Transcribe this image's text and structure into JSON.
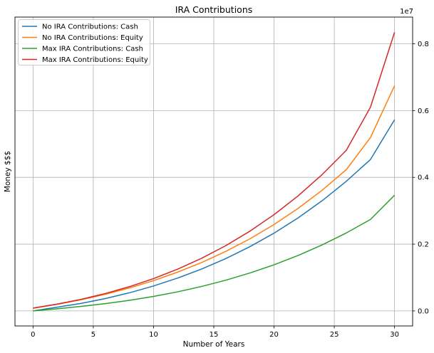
{
  "chart_data": {
    "type": "line",
    "title": "IRA Contributions",
    "xlabel": "Number of Years",
    "ylabel": "Money $$$",
    "offset_text": "1e7",
    "xlim": [
      -1.5,
      31.5
    ],
    "ylim": [
      -0.045,
      0.88
    ],
    "x_ticks": [
      0,
      5,
      10,
      15,
      20,
      25,
      30
    ],
    "y_ticks": [
      0.0,
      0.2,
      0.4,
      0.6,
      0.8
    ],
    "y_tick_labels": [
      "0.0",
      "0.2",
      "0.4",
      "0.6",
      "0.8"
    ],
    "y_axis_side": "right",
    "grid": true,
    "legend_position": "top-left",
    "x": [
      0,
      2,
      4,
      6,
      8,
      10,
      12,
      14,
      16,
      18,
      20,
      22,
      24,
      26,
      28,
      30
    ],
    "series": [
      {
        "name": "No IRA Contributions: Cash",
        "color": "#1f77b4",
        "values": [
          0.0,
          0.0113,
          0.0226,
          0.037,
          0.0543,
          0.0747,
          0.0984,
          0.1256,
          0.1569,
          0.1925,
          0.2329,
          0.2787,
          0.3303,
          0.3884,
          0.4534,
          0.5725
        ]
      },
      {
        "name": "No IRA Contributions: Equity",
        "color": "#ff7f0e",
        "values": [
          0.008,
          0.0197,
          0.0335,
          0.0498,
          0.0688,
          0.0908,
          0.1162,
          0.1452,
          0.1784,
          0.2161,
          0.2588,
          0.3072,
          0.3617,
          0.4231,
          0.5192,
          0.6745
        ]
      },
      {
        "name": "Max IRA Contributions: Cash",
        "color": "#2ca02c",
        "values": [
          0.0,
          0.0065,
          0.0135,
          0.0218,
          0.0317,
          0.0434,
          0.0572,
          0.0734,
          0.0921,
          0.1136,
          0.1382,
          0.1661,
          0.1978,
          0.2336,
          0.2739,
          0.3465
        ]
      },
      {
        "name": "Max IRA Contributions: Equity",
        "color": "#d62728",
        "values": [
          0.0085,
          0.0205,
          0.0348,
          0.0521,
          0.0727,
          0.0969,
          0.1251,
          0.1578,
          0.1956,
          0.2389,
          0.2883,
          0.3447,
          0.4087,
          0.4812,
          0.6101,
          0.8345
        ]
      }
    ]
  }
}
